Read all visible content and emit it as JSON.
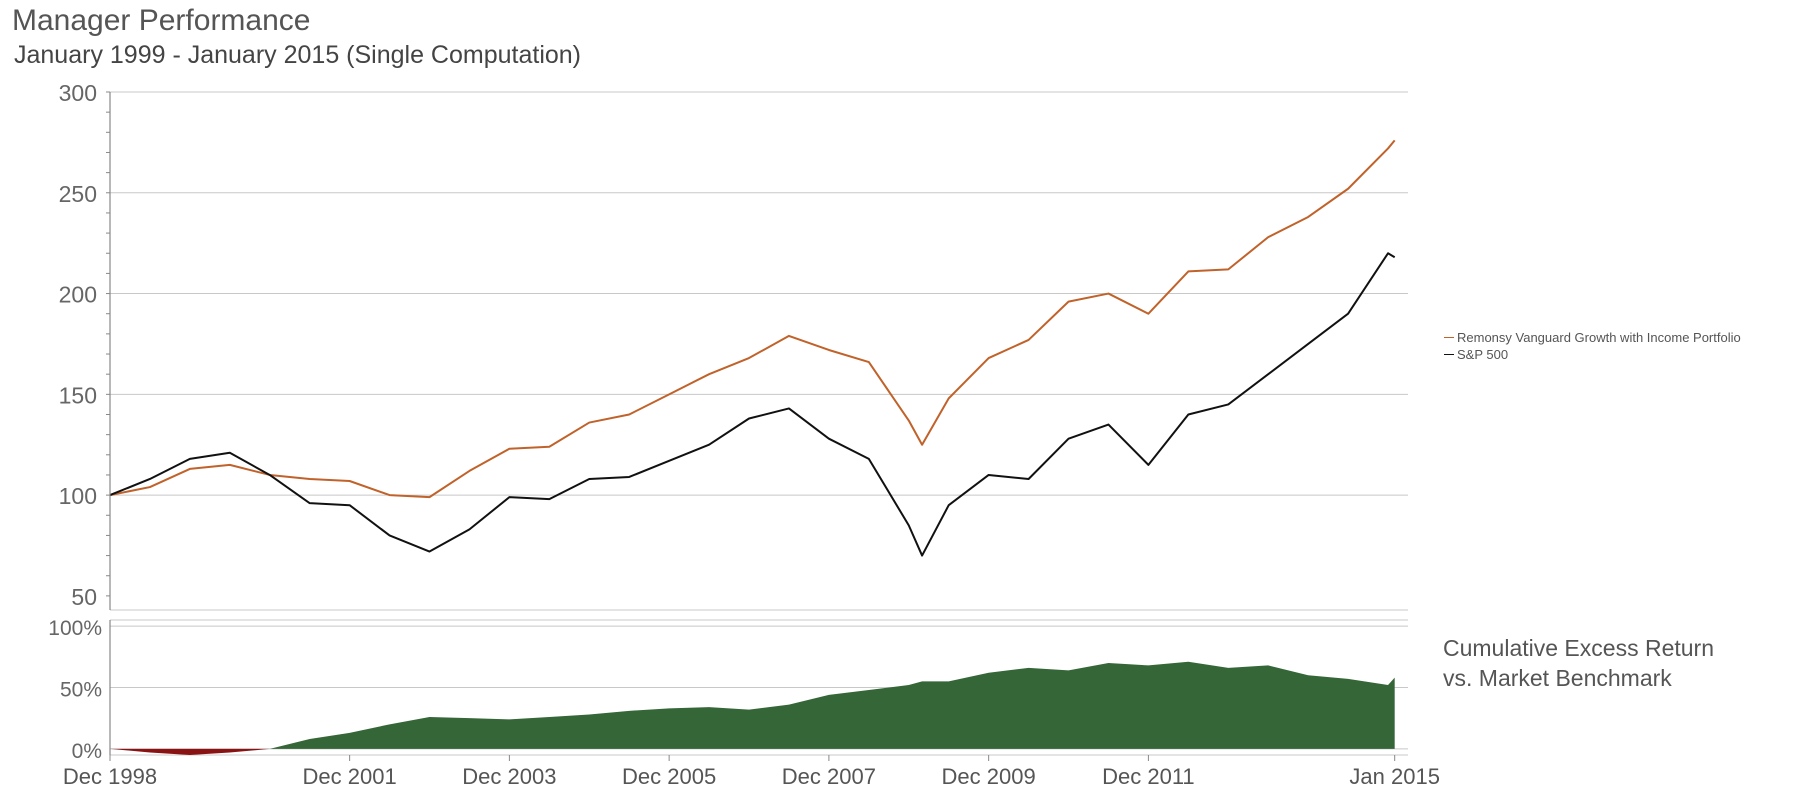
{
  "header": {
    "title": "Manager Performance",
    "subtitle": "January 1999 - January 2015 (Single Computation)"
  },
  "legend": {
    "items": [
      {
        "label": "Remonsy Vanguard Growth with Income Portfolio",
        "color": "#c0622a"
      },
      {
        "label": "S&P 500",
        "color": "#111111"
      }
    ]
  },
  "excess_panel": {
    "label_line1": "Cumulative Excess Return",
    "label_line2": "vs. Market Benchmark"
  },
  "colors": {
    "portfolio": "#c0622a",
    "benchmark": "#111111",
    "excess_positive": "#356637",
    "excess_negative": "#8b1212",
    "grid": "#c8c8c8",
    "axis": "#888888"
  },
  "chart_data": [
    {
      "type": "line",
      "title": "Manager Performance",
      "subtitle": "January 1999 - January 2015 (Single Computation)",
      "xlabel": "",
      "ylabel": "",
      "xlim": [
        "1998-12",
        "2015-03"
      ],
      "ylim": [
        43,
        300
      ],
      "yticks": [
        50,
        100,
        150,
        200,
        250,
        300
      ],
      "grid": true,
      "legend_position": "right",
      "x": [
        "1998-12",
        "1999-06",
        "1999-12",
        "2000-06",
        "2000-12",
        "2001-06",
        "2001-12",
        "2002-06",
        "2002-12",
        "2003-06",
        "2003-12",
        "2004-06",
        "2004-12",
        "2005-06",
        "2005-12",
        "2006-06",
        "2006-12",
        "2007-06",
        "2007-12",
        "2008-06",
        "2008-12",
        "2009-02",
        "2009-06",
        "2009-12",
        "2010-06",
        "2010-12",
        "2011-06",
        "2011-12",
        "2012-06",
        "2012-12",
        "2013-06",
        "2013-12",
        "2014-06",
        "2014-12",
        "2015-01"
      ],
      "series": [
        {
          "name": "Remonsy Vanguard Growth with Income Portfolio",
          "color": "#c0622a",
          "values": [
            100,
            104,
            113,
            115,
            110,
            108,
            107,
            100,
            99,
            112,
            123,
            124,
            136,
            140,
            150,
            160,
            168,
            179,
            172,
            166,
            137,
            125,
            148,
            168,
            177,
            196,
            200,
            190,
            211,
            212,
            228,
            238,
            252,
            272,
            276
          ]
        },
        {
          "name": "S&P 500",
          "color": "#111111",
          "values": [
            100,
            108,
            118,
            121,
            110,
            96,
            95,
            80,
            72,
            83,
            99,
            98,
            108,
            109,
            117,
            125,
            138,
            143,
            128,
            118,
            85,
            70,
            95,
            110,
            108,
            128,
            135,
            115,
            140,
            145,
            160,
            175,
            190,
            220,
            218
          ]
        }
      ]
    },
    {
      "type": "area",
      "title": "Cumulative Excess Return vs. Market Benchmark",
      "xlabel": "",
      "ylabel": "",
      "xlim": [
        "1998-12",
        "2015-03"
      ],
      "ylim": [
        -5,
        105
      ],
      "yticks": [
        0,
        50,
        100
      ],
      "ytick_labels": [
        "0%",
        "50%",
        "100%"
      ],
      "grid": true,
      "xtick_labels": [
        "Dec 1998",
        "Dec 2001",
        "Dec 2003",
        "Dec 2005",
        "Dec 2007",
        "Dec 2009",
        "Dec 2011",
        "Jan 2015"
      ],
      "xticks": [
        "1998-12",
        "2001-12",
        "2003-12",
        "2005-12",
        "2007-12",
        "2009-12",
        "2011-12",
        "2015-01"
      ],
      "x": [
        "1998-12",
        "1999-06",
        "1999-12",
        "2000-06",
        "2000-12",
        "2001-06",
        "2001-12",
        "2002-06",
        "2002-12",
        "2003-06",
        "2003-12",
        "2004-06",
        "2004-12",
        "2005-06",
        "2005-12",
        "2006-06",
        "2006-12",
        "2007-06",
        "2007-12",
        "2008-06",
        "2008-12",
        "2009-02",
        "2009-06",
        "2009-12",
        "2010-06",
        "2010-12",
        "2011-06",
        "2011-12",
        "2012-06",
        "2012-12",
        "2013-06",
        "2013-12",
        "2014-06",
        "2014-12",
        "2015-01"
      ],
      "values": [
        0,
        -3,
        -5,
        -3,
        0,
        8,
        13,
        20,
        26,
        25,
        24,
        26,
        28,
        31,
        33,
        34,
        32,
        36,
        44,
        48,
        52,
        55,
        55,
        62,
        66,
        64,
        70,
        68,
        71,
        66,
        68,
        60,
        57,
        52,
        58
      ]
    }
  ]
}
